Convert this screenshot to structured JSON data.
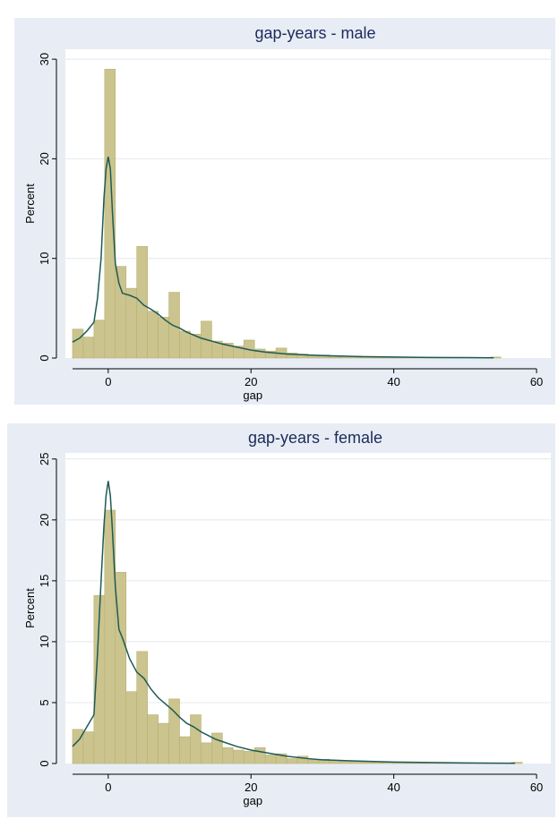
{
  "colors": {
    "outer_background": "#e8edf5",
    "plot_background": "#ffffff",
    "bar_fill": "#cbc48e",
    "bar_stroke": "#b8b070",
    "density_line": "#1e5a55",
    "gridline": "#e4e8ee",
    "title_color": "#1c2b5a"
  },
  "chart_data": [
    {
      "type": "bar",
      "title": "gap-years  - male",
      "xlabel": "gap",
      "ylabel": "Percent",
      "xlim": [
        -6,
        62
      ],
      "ylim": [
        0,
        31
      ],
      "x_ticks": [
        0,
        20,
        40,
        60
      ],
      "y_ticks": [
        0,
        10,
        20,
        30
      ],
      "grid": true,
      "bin_width": 1.5,
      "bins": [
        {
          "x0": -5.0,
          "value": 2.9
        },
        {
          "x0": -3.5,
          "value": 2.1
        },
        {
          "x0": -2.0,
          "value": 3.8
        },
        {
          "x0": -0.5,
          "value": 29.0
        },
        {
          "x0": 1.0,
          "value": 9.2
        },
        {
          "x0": 2.5,
          "value": 7.0
        },
        {
          "x0": 4.0,
          "value": 11.2
        },
        {
          "x0": 5.5,
          "value": 4.7
        },
        {
          "x0": 7.0,
          "value": 4.1
        },
        {
          "x0": 8.5,
          "value": 6.6
        },
        {
          "x0": 10.0,
          "value": 2.7
        },
        {
          "x0": 11.5,
          "value": 2.4
        },
        {
          "x0": 13.0,
          "value": 3.7
        },
        {
          "x0": 14.5,
          "value": 1.7
        },
        {
          "x0": 16.0,
          "value": 1.5
        },
        {
          "x0": 17.5,
          "value": 1.2
        },
        {
          "x0": 19.0,
          "value": 1.8
        },
        {
          "x0": 20.5,
          "value": 0.9
        },
        {
          "x0": 22.0,
          "value": 0.7
        },
        {
          "x0": 23.5,
          "value": 1.0
        },
        {
          "x0": 25.0,
          "value": 0.5
        },
        {
          "x0": 26.5,
          "value": 0.4
        },
        {
          "x0": 28.0,
          "value": 0.3
        },
        {
          "x0": 29.5,
          "value": 0.3
        },
        {
          "x0": 31.0,
          "value": 0.25
        },
        {
          "x0": 32.5,
          "value": 0.2
        },
        {
          "x0": 34.0,
          "value": 0.2
        },
        {
          "x0": 35.5,
          "value": 0.15
        },
        {
          "x0": 37.0,
          "value": 0.15
        },
        {
          "x0": 38.5,
          "value": 0.12
        },
        {
          "x0": 40.0,
          "value": 0.1
        },
        {
          "x0": 41.5,
          "value": 0.1
        },
        {
          "x0": 43.0,
          "value": 0.08
        },
        {
          "x0": 44.5,
          "value": 0.08
        },
        {
          "x0": 46.0,
          "value": 0.06
        },
        {
          "x0": 47.5,
          "value": 0.05
        },
        {
          "x0": 49.0,
          "value": 0.05
        },
        {
          "x0": 50.5,
          "value": 0.04
        },
        {
          "x0": 52.0,
          "value": 0.04
        },
        {
          "x0": 53.5,
          "value": 0.1
        }
      ],
      "density": {
        "x": [
          -5,
          -4,
          -3,
          -2,
          -1.5,
          -1,
          -0.6,
          -0.3,
          0,
          0.3,
          0.6,
          1,
          1.5,
          2,
          3,
          4,
          5,
          6,
          7,
          8,
          9,
          10,
          11,
          12,
          13,
          14,
          15,
          16,
          18,
          20,
          22,
          25,
          28,
          30,
          35,
          40,
          45,
          50,
          54
        ],
        "y": [
          1.6,
          2.0,
          2.7,
          3.6,
          6.0,
          10.0,
          16.0,
          19.0,
          20.2,
          19.0,
          14.5,
          9.5,
          7.5,
          6.5,
          6.3,
          6.0,
          5.3,
          4.9,
          4.4,
          3.8,
          3.3,
          3.0,
          2.6,
          2.3,
          2.0,
          1.8,
          1.6,
          1.4,
          1.1,
          0.8,
          0.6,
          0.4,
          0.3,
          0.25,
          0.15,
          0.1,
          0.06,
          0.04,
          0.02
        ]
      }
    },
    {
      "type": "bar",
      "title": "gap-years - female",
      "xlabel": "gap",
      "ylabel": "Percent",
      "xlim": [
        -6,
        62
      ],
      "ylim": [
        0,
        25.5
      ],
      "x_ticks": [
        0,
        20,
        40,
        60
      ],
      "y_ticks": [
        0,
        5,
        10,
        15,
        20,
        25
      ],
      "grid": true,
      "bin_width": 1.5,
      "bins": [
        {
          "x0": -5.0,
          "value": 2.8
        },
        {
          "x0": -3.5,
          "value": 2.6
        },
        {
          "x0": -2.0,
          "value": 13.8
        },
        {
          "x0": -0.5,
          "value": 20.8
        },
        {
          "x0": 1.0,
          "value": 15.7
        },
        {
          "x0": 2.5,
          "value": 5.9
        },
        {
          "x0": 4.0,
          "value": 9.2
        },
        {
          "x0": 5.5,
          "value": 4.0
        },
        {
          "x0": 7.0,
          "value": 3.3
        },
        {
          "x0": 8.5,
          "value": 5.3
        },
        {
          "x0": 10.0,
          "value": 2.2
        },
        {
          "x0": 11.5,
          "value": 4.0
        },
        {
          "x0": 13.0,
          "value": 1.7
        },
        {
          "x0": 14.5,
          "value": 2.5
        },
        {
          "x0": 16.0,
          "value": 1.3
        },
        {
          "x0": 17.5,
          "value": 1.1
        },
        {
          "x0": 19.0,
          "value": 1.0
        },
        {
          "x0": 20.5,
          "value": 1.3
        },
        {
          "x0": 22.0,
          "value": 0.7
        },
        {
          "x0": 23.5,
          "value": 0.8
        },
        {
          "x0": 25.0,
          "value": 0.4
        },
        {
          "x0": 26.5,
          "value": 0.6
        },
        {
          "x0": 28.0,
          "value": 0.3
        },
        {
          "x0": 29.5,
          "value": 0.35
        },
        {
          "x0": 31.0,
          "value": 0.25
        },
        {
          "x0": 32.5,
          "value": 0.2
        },
        {
          "x0": 34.0,
          "value": 0.15
        },
        {
          "x0": 35.5,
          "value": 0.15
        },
        {
          "x0": 37.0,
          "value": 0.12
        },
        {
          "x0": 38.5,
          "value": 0.1
        },
        {
          "x0": 40.0,
          "value": 0.1
        },
        {
          "x0": 41.5,
          "value": 0.08
        },
        {
          "x0": 43.0,
          "value": 0.07
        },
        {
          "x0": 44.5,
          "value": 0.06
        },
        {
          "x0": 46.0,
          "value": 0.05
        },
        {
          "x0": 47.5,
          "value": 0.05
        },
        {
          "x0": 49.0,
          "value": 0.04
        },
        {
          "x0": 50.5,
          "value": 0.04
        },
        {
          "x0": 52.0,
          "value": 0.03
        },
        {
          "x0": 53.5,
          "value": 0.03
        },
        {
          "x0": 55.0,
          "value": 0.03
        },
        {
          "x0": 56.5,
          "value": 0.1
        }
      ],
      "density": {
        "x": [
          -5,
          -4,
          -3,
          -2,
          -1.5,
          -1,
          -0.6,
          -0.3,
          0,
          0.3,
          0.6,
          1,
          1.5,
          2,
          3,
          4,
          5,
          6,
          7,
          8,
          9,
          10,
          11,
          12,
          13,
          14,
          15,
          16,
          18,
          20,
          22,
          25,
          28,
          30,
          35,
          40,
          45,
          50,
          57
        ],
        "y": [
          1.4,
          2.0,
          3.0,
          4.0,
          9.0,
          15.0,
          19.5,
          22.0,
          23.2,
          22.0,
          19.0,
          14.5,
          11.0,
          10.3,
          8.6,
          7.5,
          7.0,
          6.1,
          5.4,
          4.9,
          4.4,
          3.8,
          3.3,
          3.0,
          2.6,
          2.3,
          2.0,
          1.8,
          1.4,
          1.1,
          0.9,
          0.6,
          0.4,
          0.3,
          0.2,
          0.12,
          0.08,
          0.05,
          0.02
        ]
      }
    }
  ]
}
